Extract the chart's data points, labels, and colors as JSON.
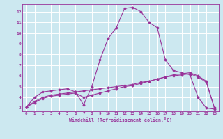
{
  "xlabel": "Windchill (Refroidissement éolien,°C)",
  "background_color": "#cce8f0",
  "grid_color": "#ffffff",
  "line_color": "#993399",
  "xlim": [
    -0.5,
    23.5
  ],
  "ylim": [
    2.7,
    12.7
  ],
  "xticks": [
    0,
    1,
    2,
    3,
    4,
    5,
    6,
    7,
    8,
    9,
    10,
    11,
    12,
    13,
    14,
    15,
    16,
    17,
    18,
    19,
    20,
    21,
    22,
    23
  ],
  "yticks": [
    3,
    4,
    5,
    6,
    7,
    8,
    9,
    10,
    11,
    12
  ],
  "series1": [
    3.1,
    4.0,
    4.5,
    4.6,
    4.7,
    4.8,
    4.5,
    3.3,
    5.0,
    7.5,
    9.5,
    10.5,
    12.3,
    12.4,
    12.0,
    11.0,
    10.5,
    7.5,
    6.5,
    6.3,
    6.1,
    4.0,
    3.0,
    2.9
  ],
  "series2": [
    3.1,
    3.5,
    3.9,
    4.1,
    4.2,
    4.3,
    4.4,
    4.0,
    4.2,
    4.4,
    4.6,
    4.8,
    5.0,
    5.1,
    5.3,
    5.5,
    5.7,
    5.9,
    6.1,
    6.2,
    6.3,
    6.0,
    5.5,
    3.0
  ],
  "series3": [
    3.1,
    3.6,
    4.0,
    4.2,
    4.3,
    4.4,
    4.5,
    4.6,
    4.7,
    4.8,
    4.9,
    5.0,
    5.1,
    5.2,
    5.4,
    5.5,
    5.7,
    5.9,
    6.0,
    6.1,
    6.2,
    5.9,
    5.4,
    3.0
  ]
}
